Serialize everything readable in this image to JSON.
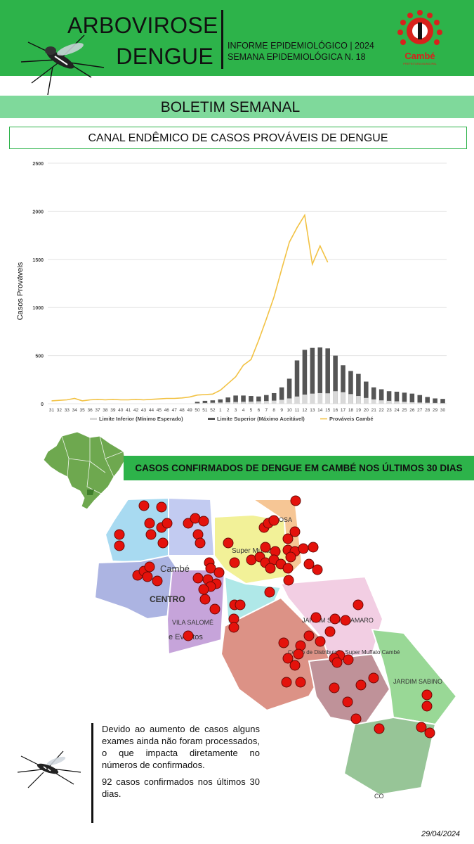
{
  "header": {
    "title_line1": "ARBOVIROSE",
    "title_line2": "DENGUE",
    "informe_line1": "INFORME EPIDEMIOLÓGICO | 2024",
    "informe_line2": "SEMANA EPIDEMIOLÓGICA  N. 18",
    "logo_text": "Cambé",
    "logo_subtext": "PREFEITURA MUNICIPAL"
  },
  "boletim": "BOLETIM SEMANAL",
  "canal_title": "CANAL ENDÊMICO DE CASOS PROVÁVEIS DE DENGUE",
  "chart_data": {
    "type": "bar",
    "ylabel": "Casos Prováveis",
    "ylim": [
      0,
      2500
    ],
    "yticks": [
      0,
      500,
      1000,
      1500,
      2000,
      2500
    ],
    "categories": [
      "31",
      "32",
      "33",
      "34",
      "35",
      "36",
      "37",
      "38",
      "39",
      "40",
      "41",
      "42",
      "43",
      "44",
      "45",
      "46",
      "47",
      "48",
      "49",
      "50",
      "51",
      "52",
      "1",
      "2",
      "3",
      "4",
      "5",
      "6",
      "7",
      "8",
      "9",
      "10",
      "11",
      "12",
      "13",
      "14",
      "15",
      "16",
      "17",
      "18",
      "19",
      "20",
      "21",
      "22",
      "23",
      "24",
      "25",
      "26",
      "27",
      "28",
      "29",
      "30"
    ],
    "series": [
      {
        "name": "Limite Inferior (Mínimo Esperado)",
        "kind": "bar",
        "color": "#d9d9d9",
        "values": [
          null,
          null,
          null,
          null,
          null,
          null,
          null,
          null,
          null,
          null,
          null,
          null,
          null,
          null,
          null,
          null,
          null,
          null,
          null,
          5,
          8,
          10,
          12,
          15,
          18,
          20,
          22,
          25,
          28,
          32,
          40,
          55,
          75,
          95,
          105,
          110,
          108,
          130,
          120,
          100,
          80,
          60,
          45,
          35,
          30,
          25,
          20,
          15,
          12,
          10,
          8,
          6
        ]
      },
      {
        "name": "Limite Superior (Máximo Aceitável)",
        "kind": "bar",
        "color": "#555555",
        "values": [
          null,
          null,
          null,
          null,
          null,
          null,
          null,
          null,
          null,
          null,
          null,
          null,
          null,
          null,
          null,
          null,
          null,
          null,
          null,
          20,
          30,
          35,
          45,
          65,
          85,
          85,
          80,
          75,
          90,
          110,
          170,
          260,
          450,
          560,
          580,
          585,
          575,
          500,
          400,
          340,
          310,
          230,
          170,
          150,
          130,
          125,
          115,
          105,
          90,
          70,
          55,
          50
        ]
      },
      {
        "name": "Prováveis Cambé",
        "kind": "line",
        "color": "#f2c244",
        "values": [
          30,
          35,
          40,
          55,
          30,
          40,
          45,
          40,
          45,
          40,
          40,
          45,
          40,
          45,
          50,
          55,
          55,
          60,
          70,
          90,
          95,
          100,
          140,
          210,
          280,
          400,
          460,
          660,
          880,
          1110,
          1400,
          1680,
          1830,
          1960,
          1450,
          1640,
          1470,
          null,
          null,
          null,
          null,
          null,
          null,
          null,
          null,
          null,
          null,
          null,
          null,
          null,
          null,
          null
        ]
      }
    ],
    "legend_position": "bottom"
  },
  "map_section": {
    "title": "CASOS CONFIRMADOS DE DENGUE EM CAMBÉ NOS ÚLTIMOS 30 DIAS",
    "labels": {
      "cambe": "Cambé",
      "centro": "CENTRO",
      "vila_salome": "VILA SALOMÉ",
      "eventos": "e Eventos",
      "supermuffato": "Super Muffato",
      "jd_santo_amaro": "JARDIM SANTO AMARO",
      "centro_distrib": "Centro de Distribuição Super Muffato Cambé",
      "jardim_sabino": "JARDIM SABINO",
      "pe_rosa": "E ROSA",
      "co": "CO"
    }
  },
  "note": {
    "paragraph1": "Devido ao aumento de casos alguns exames ainda não foram processados, o que impacta diretamente no números de confirmados.",
    "paragraph2": "92 casos confirmados nos últimos 30 dias."
  },
  "date": "29/04/2024",
  "colors": {
    "header_green": "#2db34a",
    "light_green": "#7fd99b",
    "case_red": "#e4120c",
    "line_yellow": "#f2c244",
    "bar_dark": "#555555",
    "bar_light": "#d9d9d9"
  }
}
